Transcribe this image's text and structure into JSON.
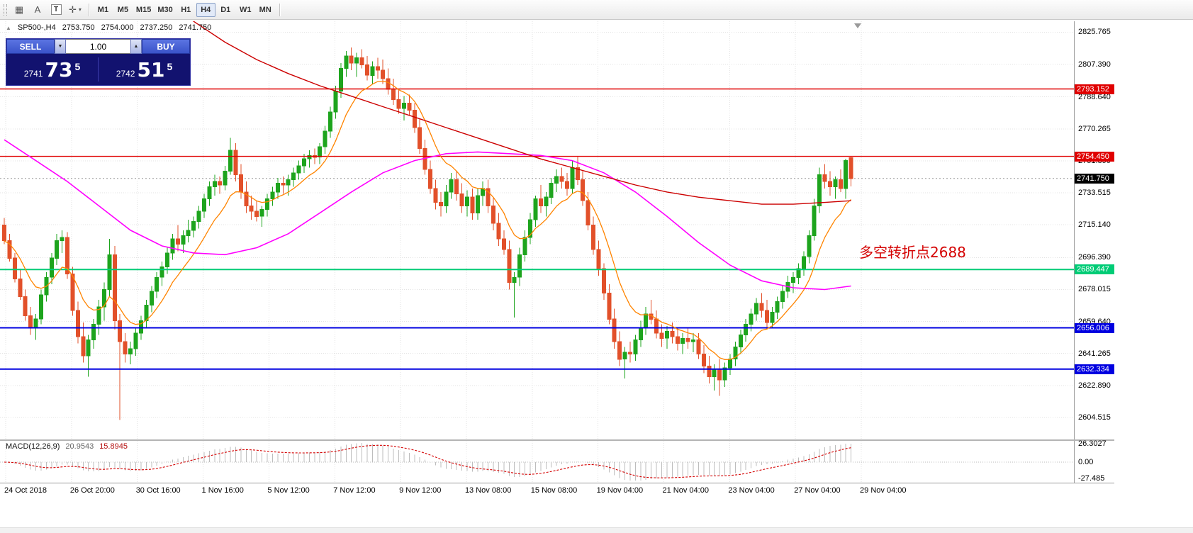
{
  "toolbar": {
    "icons": [
      {
        "name": "chart-grid-icon",
        "glyph": "▦"
      },
      {
        "name": "text-label-icon",
        "glyph": "A"
      },
      {
        "name": "text-box-icon",
        "glyph": "T"
      },
      {
        "name": "cursor-tool-icon",
        "glyph": "✛"
      },
      {
        "name": "dropdown-caret-icon",
        "glyph": "▾"
      }
    ],
    "timeframes": [
      "M1",
      "M5",
      "M15",
      "M30",
      "H1",
      "H4",
      "D1",
      "W1",
      "MN"
    ],
    "active_timeframe": "H4"
  },
  "header": {
    "collapse_glyph": "▲",
    "symbol": "SP500-,H4",
    "open": "2753.750",
    "high": "2754.000",
    "low": "2737.250",
    "close": "2741.750"
  },
  "trade_panel": {
    "sell_label": "SELL",
    "buy_label": "BUY",
    "volume": "1.00",
    "spin_down_glyph": "▼",
    "spin_up_glyph": "▲",
    "sell_price": {
      "prefix": "2741",
      "big": "73",
      "sup": "5"
    },
    "buy_price": {
      "prefix": "2742",
      "big": "51",
      "sup": "5"
    }
  },
  "annotation": {
    "text": "多空转折点2688",
    "color": "#d40000"
  },
  "chart_data": {
    "type": "candlestick",
    "symbol": "SP500-",
    "timeframe": "H4",
    "y_min": 2604.515,
    "y_max": 2825.765,
    "colors": {
      "bull": "#1da41d",
      "bear": "#e2502a",
      "grid": "#e3e3e3"
    },
    "y_ticks": [
      "2825.765",
      "2807.390",
      "2788.640",
      "2770.265",
      "2751.890",
      "2733.515",
      "2715.140",
      "2696.390",
      "2678.015",
      "2659.640",
      "2641.265",
      "2622.890",
      "2604.515"
    ],
    "x_labels": [
      "24 Oct 2018",
      "26 Oct 20:00",
      "30 Oct 16:00",
      "1 Nov 16:00",
      "5 Nov 12:00",
      "7 Nov 12:00",
      "9 Nov 12:00",
      "13 Nov 08:00",
      "15 Nov 08:00",
      "19 Nov 04:00",
      "21 Nov 04:00",
      "23 Nov 04:00",
      "27 Nov 04:00",
      "29 Nov 04:00"
    ],
    "hlines": [
      {
        "price": 2793.152,
        "label": "2793.152",
        "color": "#e00000",
        "width": 1.4
      },
      {
        "price": 2754.45,
        "label": "2754.450",
        "color": "#e00000",
        "width": 1.4
      },
      {
        "price": 2689.447,
        "label": "2689.447",
        "color": "#00cc76",
        "width": 2
      },
      {
        "price": 2656.006,
        "label": "2656.006",
        "color": "#0000e0",
        "width": 2
      },
      {
        "price": 2632.334,
        "label": "2632.334",
        "color": "#0000e0",
        "width": 2
      }
    ],
    "current_price": {
      "price": 2741.75,
      "label": "2741.750",
      "color": "#000000"
    },
    "overlays": {
      "ma_red": {
        "color": "#cc0000",
        "points": [
          [
            30,
            2846
          ],
          [
            36,
            2832
          ],
          [
            42,
            2820
          ],
          [
            48,
            2810
          ],
          [
            54,
            2802
          ],
          [
            60,
            2795
          ],
          [
            66,
            2789
          ],
          [
            72,
            2783
          ],
          [
            78,
            2777
          ],
          [
            84,
            2771
          ],
          [
            90,
            2765
          ],
          [
            96,
            2759
          ],
          [
            102,
            2753
          ],
          [
            108,
            2748
          ],
          [
            114,
            2743
          ],
          [
            120,
            2738
          ],
          [
            126,
            2734
          ],
          [
            132,
            2731
          ],
          [
            138,
            2729
          ],
          [
            144,
            2727
          ],
          [
            150,
            2727
          ],
          [
            156,
            2728
          ],
          [
            161,
            2729
          ]
        ]
      },
      "ma_magenta": {
        "color": "#ff00ff",
        "points": [
          [
            0,
            2764
          ],
          [
            6,
            2752
          ],
          [
            12,
            2740
          ],
          [
            18,
            2726
          ],
          [
            24,
            2712
          ],
          [
            30,
            2703
          ],
          [
            36,
            2699
          ],
          [
            42,
            2698
          ],
          [
            48,
            2702
          ],
          [
            54,
            2710
          ],
          [
            60,
            2722
          ],
          [
            66,
            2734
          ],
          [
            72,
            2745
          ],
          [
            78,
            2752
          ],
          [
            84,
            2756
          ],
          [
            90,
            2757
          ],
          [
            96,
            2756
          ],
          [
            102,
            2755
          ],
          [
            108,
            2752
          ],
          [
            114,
            2745
          ],
          [
            120,
            2734
          ],
          [
            126,
            2720
          ],
          [
            132,
            2705
          ],
          [
            138,
            2692
          ],
          [
            144,
            2683
          ],
          [
            150,
            2679
          ],
          [
            156,
            2678
          ],
          [
            161,
            2680
          ]
        ]
      },
      "ma_orange": {
        "color": "#ff8400",
        "type": "ema",
        "period": 10
      }
    },
    "candles": [
      [
        2715,
        2719,
        2704,
        2706
      ],
      [
        2706,
        2710,
        2694,
        2696
      ],
      [
        2696,
        2699,
        2682,
        2684
      ],
      [
        2684,
        2690,
        2672,
        2674
      ],
      [
        2674,
        2678,
        2660,
        2663
      ],
      [
        2663,
        2668,
        2652,
        2656
      ],
      [
        2656,
        2664,
        2649,
        2661
      ],
      [
        2661,
        2678,
        2658,
        2675
      ],
      [
        2675,
        2688,
        2671,
        2685
      ],
      [
        2685,
        2699,
        2681,
        2696
      ],
      [
        2696,
        2710,
        2692,
        2706
      ],
      [
        2706,
        2712,
        2699,
        2708
      ],
      [
        2708,
        2711,
        2684,
        2687
      ],
      [
        2687,
        2691,
        2663,
        2666
      ],
      [
        2666,
        2671,
        2647,
        2651
      ],
      [
        2651,
        2659,
        2636,
        2640
      ],
      [
        2640,
        2652,
        2628,
        2649
      ],
      [
        2649,
        2661,
        2644,
        2658
      ],
      [
        2658,
        2672,
        2652,
        2668
      ],
      [
        2668,
        2682,
        2660,
        2678
      ],
      [
        2678,
        2707,
        2674,
        2698
      ],
      [
        2698,
        2703,
        2655,
        2660
      ],
      [
        2660,
        2664,
        2603,
        2648
      ],
      [
        2648,
        2653,
        2636,
        2641
      ],
      [
        2641,
        2648,
        2635,
        2644
      ],
      [
        2644,
        2656,
        2640,
        2653
      ],
      [
        2653,
        2663,
        2649,
        2660
      ],
      [
        2660,
        2672,
        2656,
        2669
      ],
      [
        2669,
        2680,
        2665,
        2677
      ],
      [
        2677,
        2688,
        2673,
        2685
      ],
      [
        2685,
        2694,
        2680,
        2691
      ],
      [
        2691,
        2702,
        2687,
        2699
      ],
      [
        2699,
        2710,
        2695,
        2707
      ],
      [
        2707,
        2715,
        2700,
        2704
      ],
      [
        2704,
        2712,
        2699,
        2709
      ],
      [
        2709,
        2718,
        2705,
        2712
      ],
      [
        2712,
        2720,
        2708,
        2717
      ],
      [
        2717,
        2726,
        2713,
        2723
      ],
      [
        2723,
        2733,
        2719,
        2730
      ],
      [
        2730,
        2740,
        2726,
        2737
      ],
      [
        2737,
        2744,
        2732,
        2740
      ],
      [
        2740,
        2743,
        2733,
        2738
      ],
      [
        2738,
        2749,
        2735,
        2746
      ],
      [
        2746,
        2765,
        2744,
        2758
      ],
      [
        2758,
        2762,
        2740,
        2744
      ],
      [
        2744,
        2750,
        2730,
        2734
      ],
      [
        2734,
        2740,
        2722,
        2726
      ],
      [
        2726,
        2732,
        2718,
        2723
      ],
      [
        2723,
        2729,
        2717,
        2720
      ],
      [
        2720,
        2726,
        2714,
        2724
      ],
      [
        2724,
        2733,
        2720,
        2730
      ],
      [
        2730,
        2737,
        2726,
        2734
      ],
      [
        2734,
        2742,
        2730,
        2739
      ],
      [
        2739,
        2743,
        2733,
        2738
      ],
      [
        2738,
        2744,
        2732,
        2741
      ],
      [
        2741,
        2748,
        2737,
        2745
      ],
      [
        2745,
        2752,
        2741,
        2749
      ],
      [
        2749,
        2756,
        2745,
        2753
      ],
      [
        2753,
        2758,
        2748,
        2755
      ],
      [
        2755,
        2759,
        2750,
        2754
      ],
      [
        2754,
        2762,
        2750,
        2760
      ],
      [
        2760,
        2772,
        2756,
        2769
      ],
      [
        2769,
        2783,
        2765,
        2780
      ],
      [
        2780,
        2795,
        2776,
        2792
      ],
      [
        2792,
        2808,
        2788,
        2805
      ],
      [
        2805,
        2815,
        2800,
        2812
      ],
      [
        2812,
        2817,
        2804,
        2808
      ],
      [
        2808,
        2814,
        2800,
        2811
      ],
      [
        2811,
        2816,
        2805,
        2807
      ],
      [
        2807,
        2812,
        2798,
        2801
      ],
      [
        2801,
        2809,
        2796,
        2806
      ],
      [
        2806,
        2811,
        2799,
        2804
      ],
      [
        2804,
        2810,
        2796,
        2799
      ],
      [
        2799,
        2805,
        2790,
        2793
      ],
      [
        2793,
        2799,
        2784,
        2787
      ],
      [
        2787,
        2793,
        2779,
        2782
      ],
      [
        2782,
        2789,
        2775,
        2785
      ],
      [
        2785,
        2790,
        2778,
        2781
      ],
      [
        2781,
        2785,
        2768,
        2771
      ],
      [
        2771,
        2776,
        2756,
        2759
      ],
      [
        2759,
        2764,
        2744,
        2747
      ],
      [
        2747,
        2752,
        2733,
        2736
      ],
      [
        2736,
        2741,
        2724,
        2728
      ],
      [
        2728,
        2734,
        2720,
        2726
      ],
      [
        2726,
        2738,
        2722,
        2734
      ],
      [
        2734,
        2745,
        2730,
        2741
      ],
      [
        2741,
        2746,
        2729,
        2733
      ],
      [
        2733,
        2739,
        2722,
        2726
      ],
      [
        2726,
        2735,
        2720,
        2731
      ],
      [
        2731,
        2736,
        2718,
        2722
      ],
      [
        2722,
        2736,
        2718,
        2732
      ],
      [
        2732,
        2740,
        2726,
        2736
      ],
      [
        2736,
        2741,
        2722,
        2726
      ],
      [
        2726,
        2731,
        2712,
        2716
      ],
      [
        2716,
        2722,
        2703,
        2707
      ],
      [
        2707,
        2712,
        2698,
        2701
      ],
      [
        2701,
        2706,
        2678,
        2682
      ],
      [
        2682,
        2688,
        2662,
        2685
      ],
      [
        2685,
        2702,
        2680,
        2698
      ],
      [
        2698,
        2712,
        2694,
        2708
      ],
      [
        2708,
        2722,
        2704,
        2718
      ],
      [
        2718,
        2732,
        2714,
        2730
      ],
      [
        2730,
        2738,
        2722,
        2726
      ],
      [
        2726,
        2734,
        2720,
        2731
      ],
      [
        2731,
        2742,
        2727,
        2739
      ],
      [
        2739,
        2747,
        2734,
        2743
      ],
      [
        2743,
        2748,
        2736,
        2740
      ],
      [
        2740,
        2745,
        2732,
        2736
      ],
      [
        2736,
        2752,
        2733,
        2748
      ],
      [
        2748,
        2754,
        2738,
        2741
      ],
      [
        2741,
        2746,
        2726,
        2729
      ],
      [
        2729,
        2734,
        2712,
        2715
      ],
      [
        2715,
        2720,
        2698,
        2701
      ],
      [
        2701,
        2706,
        2686,
        2690
      ],
      [
        2690,
        2693,
        2672,
        2676
      ],
      [
        2676,
        2681,
        2658,
        2661
      ],
      [
        2661,
        2667,
        2644,
        2648
      ],
      [
        2648,
        2654,
        2634,
        2638
      ],
      [
        2638,
        2645,
        2627,
        2642
      ],
      [
        2642,
        2648,
        2636,
        2641
      ],
      [
        2641,
        2652,
        2637,
        2649
      ],
      [
        2649,
        2660,
        2645,
        2656
      ],
      [
        2656,
        2668,
        2652,
        2664
      ],
      [
        2664,
        2672,
        2658,
        2661
      ],
      [
        2661,
        2666,
        2650,
        2653
      ],
      [
        2653,
        2658,
        2645,
        2650
      ],
      [
        2650,
        2657,
        2644,
        2654
      ],
      [
        2654,
        2659,
        2647,
        2651
      ],
      [
        2651,
        2656,
        2643,
        2647
      ],
      [
        2647,
        2653,
        2641,
        2650
      ],
      [
        2650,
        2656,
        2644,
        2648
      ],
      [
        2648,
        2653,
        2642,
        2649
      ],
      [
        2649,
        2653,
        2638,
        2641
      ],
      [
        2641,
        2646,
        2630,
        2634
      ],
      [
        2634,
        2640,
        2624,
        2628
      ],
      [
        2628,
        2635,
        2620,
        2632
      ],
      [
        2632,
        2638,
        2617,
        2626
      ],
      [
        2626,
        2636,
        2622,
        2633
      ],
      [
        2633,
        2641,
        2629,
        2638
      ],
      [
        2638,
        2648,
        2634,
        2645
      ],
      [
        2645,
        2655,
        2641,
        2652
      ],
      [
        2652,
        2661,
        2648,
        2658
      ],
      [
        2658,
        2667,
        2654,
        2664
      ],
      [
        2664,
        2673,
        2660,
        2670
      ],
      [
        2670,
        2676,
        2662,
        2666
      ],
      [
        2666,
        2672,
        2655,
        2659
      ],
      [
        2659,
        2668,
        2656,
        2665
      ],
      [
        2665,
        2674,
        2661,
        2671
      ],
      [
        2671,
        2680,
        2667,
        2677
      ],
      [
        2677,
        2686,
        2673,
        2682
      ],
      [
        2682,
        2688,
        2676,
        2685
      ],
      [
        2685,
        2693,
        2681,
        2690
      ],
      [
        2690,
        2700,
        2686,
        2697
      ],
      [
        2697,
        2712,
        2693,
        2709
      ],
      [
        2709,
        2730,
        2706,
        2726
      ],
      [
        2726,
        2748,
        2722,
        2744
      ],
      [
        2744,
        2750,
        2736,
        2740
      ],
      [
        2740,
        2746,
        2732,
        2737
      ],
      [
        2737,
        2743,
        2730,
        2741
      ],
      [
        2741,
        2747,
        2734,
        2736
      ],
      [
        2736,
        2753,
        2730,
        2752
      ],
      [
        2753.75,
        2754,
        2737.25,
        2741.75
      ]
    ],
    "indicator": {
      "name": "MACD(12,26,9)",
      "main_value": "20.9543",
      "signal_value": "15.8945",
      "ticks": [
        "26.3027",
        "0.00",
        "-27.485"
      ]
    }
  }
}
